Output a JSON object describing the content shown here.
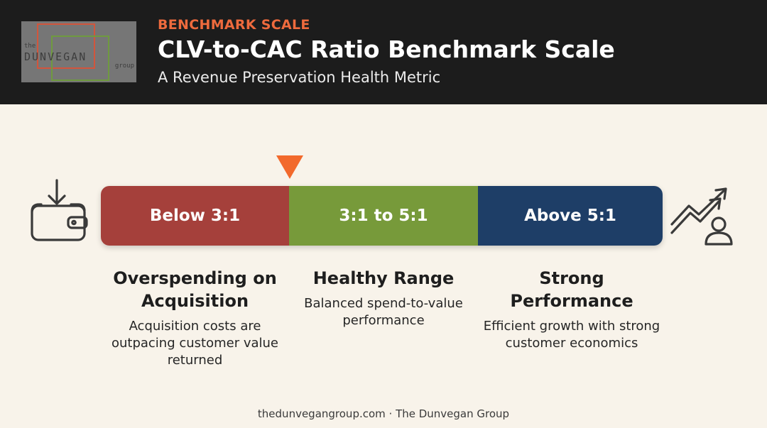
{
  "header": {
    "eyebrow": "BENCHMARK SCALE",
    "title": "CLV-to-CAC Ratio Benchmark Scale",
    "subtitle": "A Revenue Preservation Health Metric"
  },
  "logo": {
    "the": "the",
    "name": "DUNVEGAN",
    "group": "group"
  },
  "scale": {
    "segments": [
      {
        "label": "Below 3:1",
        "color": "#a5403b"
      },
      {
        "label": "3:1 to 5:1",
        "color": "#779a3a"
      },
      {
        "label": "Above 5:1",
        "color": "#1e3e67"
      }
    ],
    "marker": {
      "at_ratio": "3:1",
      "color": "#f2692c"
    }
  },
  "icons": {
    "left": "wallet-download-icon",
    "right": "growth-person-icon"
  },
  "columns": [
    {
      "heading": "Overspending on Acquisition",
      "description": "Acquisition costs are outpacing customer value returned"
    },
    {
      "heading": "Healthy Range",
      "description": "Balanced spend-to-value performance"
    },
    {
      "heading": "Strong Performance",
      "description": "Efficient growth with strong customer economics"
    }
  ],
  "footer": "thedunvegangroup.com · The Dunvegan Group"
}
